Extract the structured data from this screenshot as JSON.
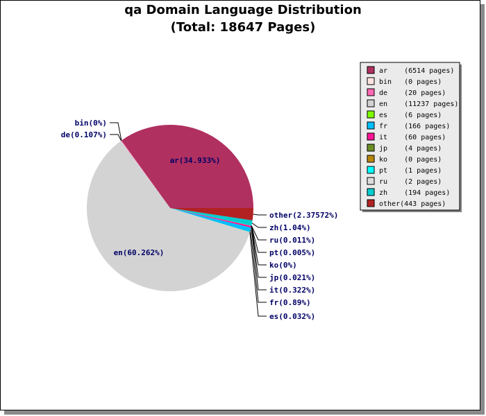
{
  "chart_data": {
    "type": "pie",
    "title": "qa Domain Language Distribution",
    "subtitle": "(Total: 18647 Pages)",
    "slices": [
      {
        "key": "ar",
        "value": 6514,
        "legend": "ar    (6514 pages)",
        "label": "ar(34.933%)",
        "color": "#b03060"
      },
      {
        "key": "bin",
        "value": 0,
        "legend": "bin   (0 pages)",
        "label": "bin(0%)",
        "color": "#ffe4e1"
      },
      {
        "key": "de",
        "value": 20,
        "legend": "de    (20 pages)",
        "label": "de(0.107%)",
        "color": "#ff69b4"
      },
      {
        "key": "en",
        "value": 11237,
        "legend": "en    (11237 pages)",
        "label": "en(60.262%)",
        "color": "#d3d3d3"
      },
      {
        "key": "es",
        "value": 6,
        "legend": "es    (6 pages)",
        "label": "es(0.032%)",
        "color": "#7fff00"
      },
      {
        "key": "fr",
        "value": 166,
        "legend": "fr    (166 pages)",
        "label": "fr(0.89%)",
        "color": "#00bfff"
      },
      {
        "key": "it",
        "value": 60,
        "legend": "it    (60 pages)",
        "label": "it(0.322%)",
        "color": "#ff1493"
      },
      {
        "key": "jp",
        "value": 4,
        "legend": "jp    (4 pages)",
        "label": "jp(0.021%)",
        "color": "#6b8e23"
      },
      {
        "key": "ko",
        "value": 0,
        "legend": "ko    (0 pages)",
        "label": "ko(0%)",
        "color": "#b8860b"
      },
      {
        "key": "pt",
        "value": 1,
        "legend": "pt    (1 pages)",
        "label": "pt(0.005%)",
        "color": "#00ffff"
      },
      {
        "key": "ru",
        "value": 2,
        "legend": "ru    (2 pages)",
        "label": "ru(0.011%)",
        "color": "#dcdcdc"
      },
      {
        "key": "zh",
        "value": 194,
        "legend": "zh    (194 pages)",
        "label": "zh(1.04%)",
        "color": "#00ced1"
      },
      {
        "key": "other",
        "value": 443,
        "legend": "other(443 pages)",
        "label": "other(2.37572%)",
        "color": "#b22222"
      }
    ],
    "legend_position": "top-right",
    "label_color": "#000066"
  }
}
